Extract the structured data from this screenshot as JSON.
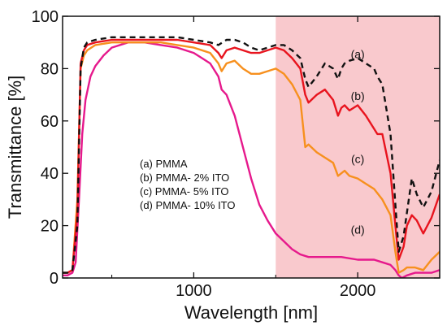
{
  "chart_data": {
    "type": "line",
    "xlabel": "Wavelength [nm]",
    "ylabel": "Transmittance [%]",
    "xlim": [
      200,
      2500
    ],
    "ylim": [
      0,
      100
    ],
    "xticks": [
      1000,
      2000
    ],
    "yticks": [
      0,
      20,
      40,
      60,
      80,
      100
    ],
    "shaded_region": {
      "x_start": 1500,
      "x_end": 2500,
      "color": "#f9c9cd"
    },
    "legend": {
      "placement": "center-left",
      "entries": [
        "(a) PMMA",
        "(b) PMMA- 2% ITO",
        "(c) PMMA- 5% ITO",
        "(d) PMMA- 10% ITO"
      ]
    },
    "series": [
      {
        "label": "(a)",
        "color": "#111111",
        "dash": "7,5",
        "x": [
          200,
          230,
          260,
          290,
          310,
          330,
          350,
          400,
          500,
          600,
          700,
          800,
          900,
          1000,
          1100,
          1150,
          1200,
          1250,
          1300,
          1350,
          1400,
          1450,
          1500,
          1550,
          1600,
          1650,
          1680,
          1700,
          1750,
          1800,
          1850,
          1880,
          1900,
          1920,
          1950,
          2000,
          2050,
          2100,
          2120,
          2150,
          2200,
          2230,
          2250,
          2280,
          2300,
          2330,
          2360,
          2400,
          2450,
          2500
        ],
        "y": [
          2,
          2,
          3,
          20,
          80,
          88,
          90,
          91,
          92,
          92,
          92,
          92,
          92,
          91,
          90,
          89,
          91,
          91,
          90,
          88,
          87,
          88,
          89,
          89,
          87,
          84,
          76,
          73,
          77,
          82,
          80,
          76,
          80,
          82,
          83,
          84,
          82,
          80,
          77,
          74,
          55,
          28,
          10,
          16,
          25,
          38,
          32,
          27,
          33,
          45
        ]
      },
      {
        "label": "(b)",
        "color": "#e8141e",
        "dash": "",
        "x": [
          200,
          230,
          260,
          290,
          310,
          330,
          350,
          400,
          500,
          600,
          700,
          800,
          900,
          1000,
          1100,
          1150,
          1170,
          1200,
          1250,
          1300,
          1350,
          1400,
          1450,
          1500,
          1550,
          1600,
          1650,
          1680,
          1700,
          1750,
          1800,
          1850,
          1880,
          1900,
          1920,
          1950,
          2000,
          2050,
          2100,
          2120,
          2150,
          2200,
          2230,
          2250,
          2280,
          2300,
          2330,
          2360,
          2400,
          2450,
          2500
        ],
        "y": [
          2,
          2,
          3,
          25,
          82,
          87,
          89,
          90,
          91,
          91,
          91,
          91,
          91,
          90,
          89,
          86,
          84,
          87,
          88,
          87,
          86,
          86,
          87,
          88,
          87,
          84,
          80,
          70,
          67,
          70,
          72,
          68,
          62,
          65,
          66,
          64,
          66,
          62,
          57,
          55,
          55,
          40,
          20,
          7,
          12,
          20,
          24,
          22,
          17,
          23,
          32
        ]
      },
      {
        "label": "(c)",
        "color": "#f7901e",
        "dash": "",
        "x": [
          200,
          230,
          260,
          290,
          310,
          330,
          350,
          400,
          500,
          600,
          700,
          800,
          900,
          1000,
          1100,
          1150,
          1170,
          1200,
          1250,
          1300,
          1350,
          1400,
          1450,
          1500,
          1550,
          1600,
          1650,
          1680,
          1700,
          1750,
          1800,
          1850,
          1880,
          1900,
          1920,
          1950,
          2000,
          2050,
          2100,
          2150,
          2200,
          2230,
          2250,
          2280,
          2300,
          2350,
          2400,
          2450,
          2500
        ],
        "y": [
          2,
          2,
          3,
          30,
          80,
          85,
          87,
          89,
          90,
          90,
          90,
          90,
          89,
          88,
          86,
          82,
          79,
          82,
          83,
          80,
          78,
          78,
          79,
          80,
          78,
          74,
          68,
          50,
          51,
          48,
          46,
          44,
          39,
          40,
          41,
          39,
          38,
          36,
          34,
          30,
          24,
          10,
          2,
          3,
          4,
          4,
          3,
          7,
          10
        ]
      },
      {
        "label": "(d)",
        "color": "#e6198c",
        "dash": "",
        "x": [
          200,
          230,
          260,
          280,
          300,
          320,
          340,
          370,
          400,
          450,
          500,
          600,
          700,
          800,
          900,
          1000,
          1050,
          1100,
          1150,
          1170,
          1200,
          1250,
          1300,
          1350,
          1400,
          1450,
          1500,
          1550,
          1600,
          1650,
          1700,
          1750,
          1800,
          1900,
          2000,
          2100,
          2150,
          2200,
          2230,
          2250,
          2270,
          2300,
          2350,
          2400,
          2450,
          2500
        ],
        "y": [
          1,
          1,
          2,
          6,
          30,
          55,
          68,
          77,
          81,
          85,
          88,
          90,
          90,
          89,
          88,
          86,
          84,
          82,
          77,
          72,
          70,
          62,
          50,
          38,
          28,
          22,
          17,
          14,
          11,
          9,
          8,
          8,
          8,
          8,
          7,
          7,
          6,
          5,
          3,
          1,
          0,
          1,
          2,
          2,
          2,
          3
        ]
      }
    ]
  }
}
